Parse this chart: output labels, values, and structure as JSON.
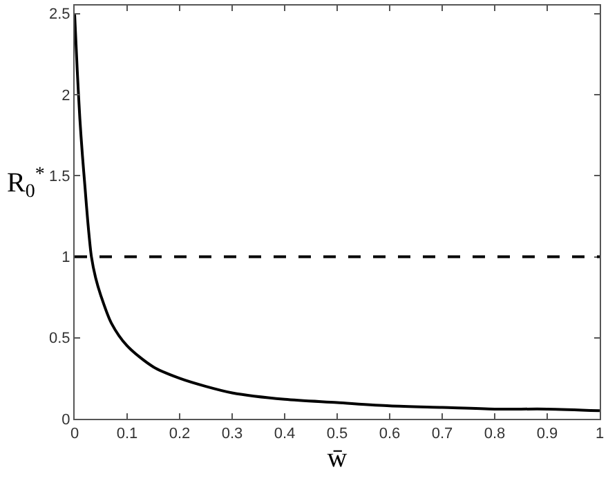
{
  "chart_data": {
    "type": "line",
    "xlabel": "w̄",
    "ylabel": "R$_{0}$$^{*}$",
    "x": [
      0,
      0.005,
      0.01,
      0.015,
      0.02,
      0.025,
      0.032,
      0.04,
      0.05,
      0.07,
      0.1,
      0.15,
      0.2,
      0.25,
      0.3,
      0.4,
      0.5,
      0.6,
      0.7,
      0.8,
      0.9,
      1
    ],
    "series": [
      {
        "color": "#000000",
        "values": [
          2.5,
          2.15,
          1.85,
          1.62,
          1.42,
          1.22,
          1.0,
          0.87,
          0.76,
          0.59,
          0.45,
          0.32,
          0.25,
          0.2,
          0.16,
          0.12,
          0.1,
          0.08,
          0.07,
          0.06,
          0.06,
          0.05
        ]
      }
    ],
    "xlim": [
      0,
      1
    ],
    "ylim": [
      0,
      2.55
    ],
    "xticks": [
      0,
      0.1,
      0.2,
      0.3,
      0.4,
      0.5,
      0.6,
      0.7,
      0.8,
      0.9,
      1
    ],
    "yticks": [
      0,
      0.5,
      1,
      1.5,
      2,
      2.5
    ],
    "ref_lines": [
      {
        "axis": "y",
        "value": 1,
        "color": "#000000",
        "line_style": "dashed"
      }
    ],
    "marker": "none",
    "line_style": "solid"
  }
}
